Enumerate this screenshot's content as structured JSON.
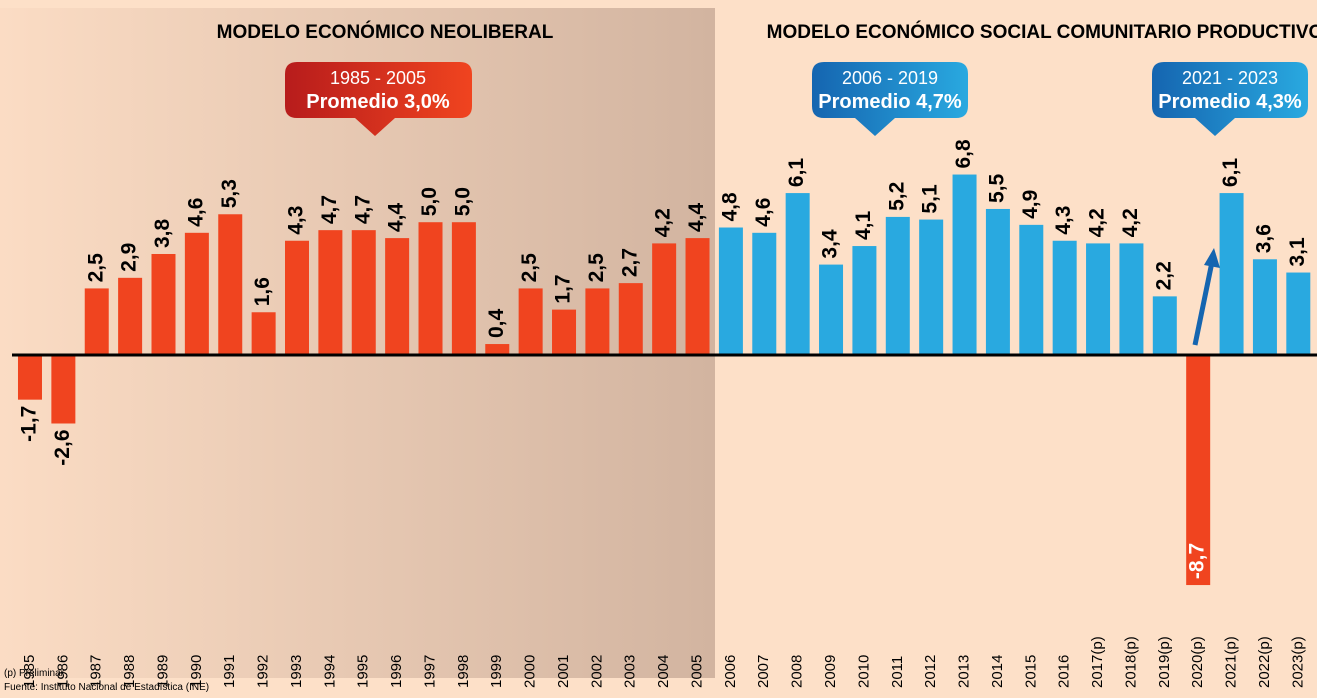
{
  "chart_data": {
    "type": "bar",
    "annotations": {
      "left_title": "MODELO ECONÓMICO NEOLIBERAL",
      "right_title": "MODELO ECONÓMICO SOCIAL COMUNITARIO PRODUCTIVO",
      "callout1_years": "1985 - 2005",
      "callout1_avg": "Promedio 3,0%",
      "callout2_years": "2006 - 2019",
      "callout2_avg": "Promedio 4,7%",
      "callout3_years": "2021 - 2023",
      "callout3_avg": "Promedio 4,3%",
      "note": "(p) Preliminar",
      "source": "Fuente: Instituto Nacional de Estadística (INE)"
    },
    "categories": [
      "1985",
      "1986",
      "1987",
      "1988",
      "1989",
      "1990",
      "1991",
      "1992",
      "1993",
      "1994",
      "1995",
      "1996",
      "1997",
      "1998",
      "1999",
      "2000",
      "2001",
      "2002",
      "2003",
      "2004",
      "2005",
      "2006",
      "2007",
      "2008",
      "2009",
      "2010",
      "2011",
      "2012",
      "2013",
      "2014",
      "2015",
      "2016",
      "2017(p)",
      "2018(p)",
      "2019(p)",
      "2020(p)",
      "2021(p)",
      "2022(p)",
      "2023(p)"
    ],
    "values": [
      -1.7,
      -2.6,
      2.5,
      2.9,
      3.8,
      4.6,
      5.3,
      1.6,
      4.3,
      4.7,
      4.7,
      4.4,
      5.0,
      5.0,
      0.4,
      2.5,
      1.7,
      2.5,
      2.7,
      4.2,
      4.4,
      4.8,
      4.6,
      6.1,
      3.4,
      4.1,
      5.2,
      5.1,
      6.8,
      5.5,
      4.9,
      4.3,
      4.2,
      4.2,
      2.2,
      -8.7,
      6.1,
      3.6,
      3.1
    ],
    "value_labels": [
      "-1,7",
      "-2,6",
      "2,5",
      "2,9",
      "3,8",
      "4,6",
      "5,3",
      "1,6",
      "4,3",
      "4,7",
      "4,7",
      "4,4",
      "5,0",
      "5,0",
      "0,4",
      "2,5",
      "1,7",
      "2,5",
      "2,7",
      "4,2",
      "4,4",
      "4,8",
      "4,6",
      "6,1",
      "3,4",
      "4,1",
      "5,2",
      "5,1",
      "6,8",
      "5,5",
      "4,9",
      "4,3",
      "4,2",
      "4,2",
      "2,2",
      "-8,7",
      "6,1",
      "3,6",
      "3,1"
    ],
    "colors": [
      "#f0441f",
      "#f0441f",
      "#f0441f",
      "#f0441f",
      "#f0441f",
      "#f0441f",
      "#f0441f",
      "#f0441f",
      "#f0441f",
      "#f0441f",
      "#f0441f",
      "#f0441f",
      "#f0441f",
      "#f0441f",
      "#f0441f",
      "#f0441f",
      "#f0441f",
      "#f0441f",
      "#f0441f",
      "#f0441f",
      "#f0441f",
      "#29a9e0",
      "#29a9e0",
      "#29a9e0",
      "#29a9e0",
      "#29a9e0",
      "#29a9e0",
      "#29a9e0",
      "#29a9e0",
      "#29a9e0",
      "#29a9e0",
      "#29a9e0",
      "#29a9e0",
      "#29a9e0",
      "#29a9e0",
      "#f0441f",
      "#29a9e0",
      "#29a9e0",
      "#29a9e0"
    ],
    "ylim": [
      -9,
      7.5
    ]
  }
}
